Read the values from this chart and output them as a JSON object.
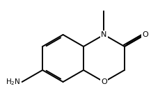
{
  "background": "#ffffff",
  "bond_color": "#000000",
  "figsize": [
    2.4,
    1.34
  ],
  "dpi": 100,
  "lw": 1.4,
  "fontsize": 8.0,
  "xlim": [
    -0.5,
    4.5
  ],
  "ylim": [
    -0.3,
    3.5
  ]
}
